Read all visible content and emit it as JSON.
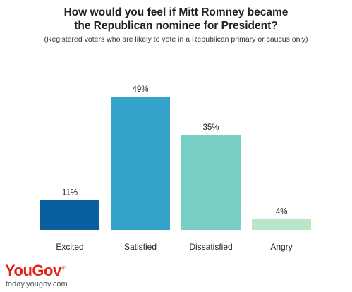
{
  "chart_data": {
    "type": "bar",
    "title_lines": [
      "How would you feel if Mitt Romney became",
      "the Republican nominee for President?"
    ],
    "subtitle": "(Registered voters who are likely to vote in a Republican primary or caucus only)",
    "categories": [
      "Excited",
      "Satisfied",
      "Dissatisfied",
      "Angry"
    ],
    "values": [
      11,
      49,
      35,
      4
    ],
    "value_labels": [
      "11%",
      "49%",
      "35%",
      "4%"
    ],
    "colors": [
      "#0a5f9e",
      "#33a3cc",
      "#7acfc4",
      "#b8e6c6"
    ],
    "ylim": [
      0,
      49
    ],
    "grid": false
  },
  "brand": {
    "logo_part1": "You",
    "logo_part2": "Gov",
    "logo_mark": "®",
    "website": "today.yougov.com"
  }
}
